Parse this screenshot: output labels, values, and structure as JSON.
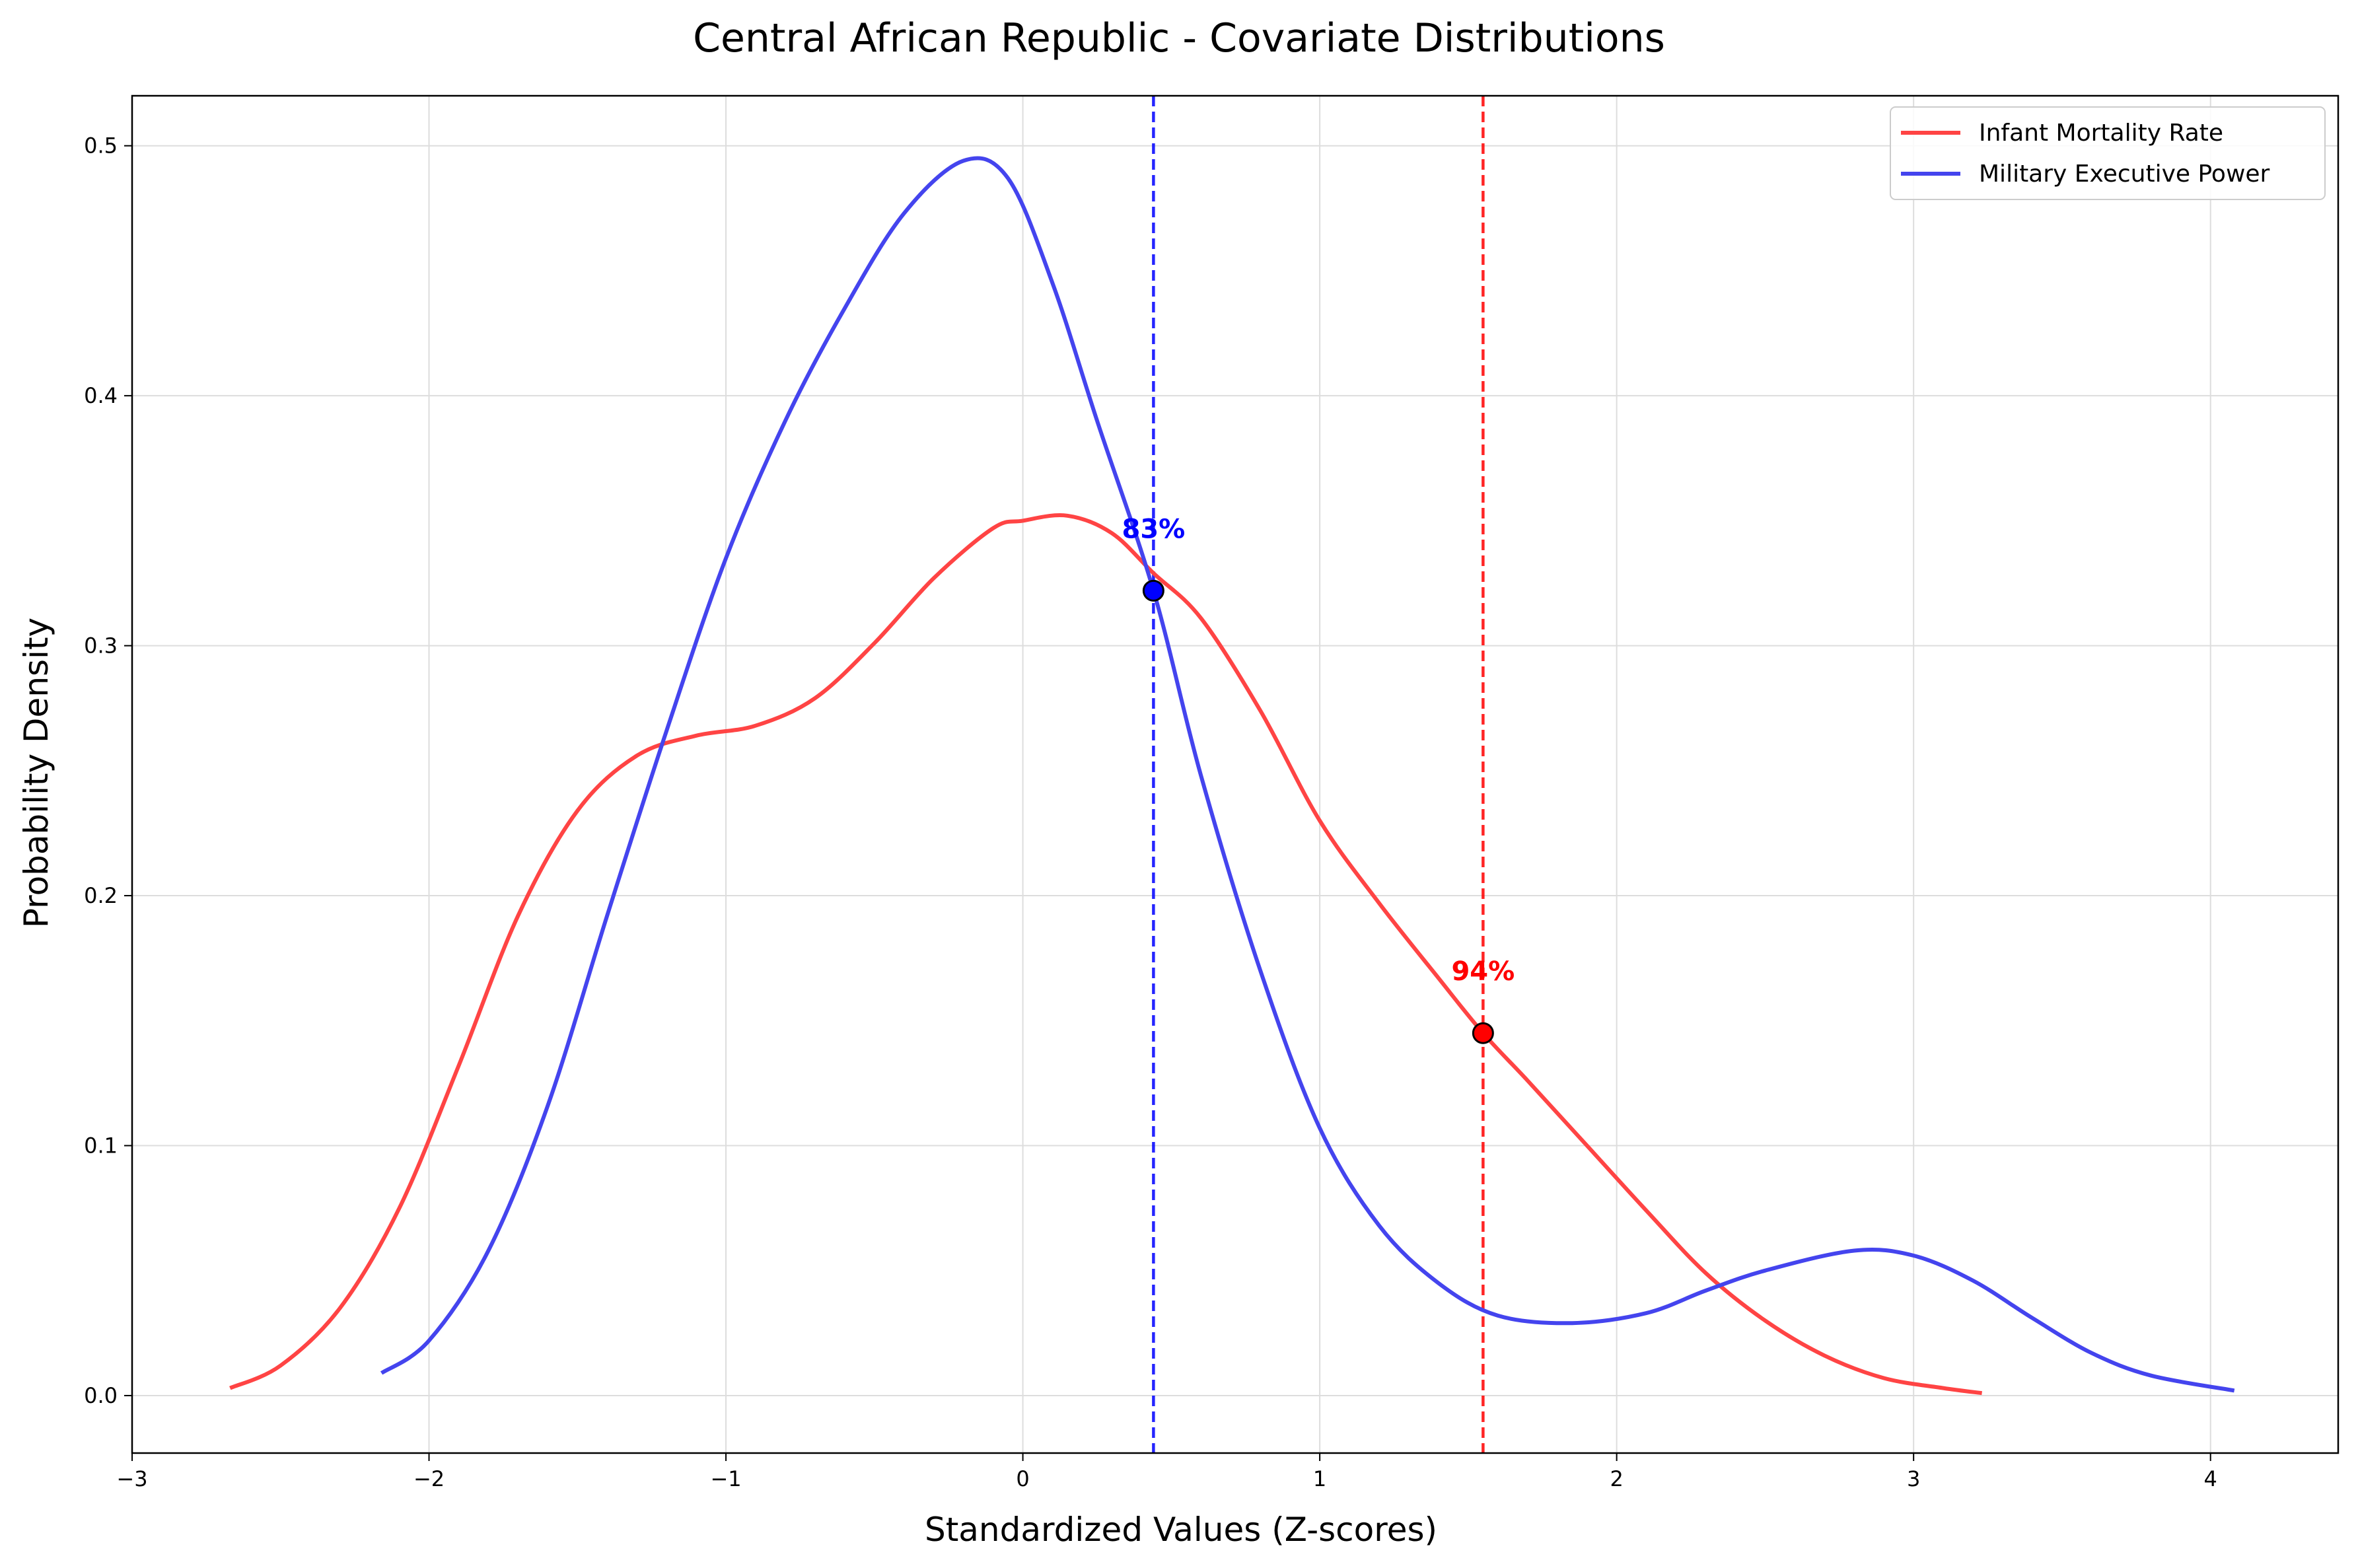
{
  "chart_data": {
    "type": "line",
    "title": "Central African Republic - Covariate Distributions",
    "xlabel": "Standardized Values (Z-scores)",
    "ylabel": "Probability Density",
    "xlim": [
      -3,
      4.43
    ],
    "ylim": [
      -0.023,
      0.52
    ],
    "xticks": [
      -3,
      -2,
      -1,
      0,
      1,
      2,
      3,
      4
    ],
    "xtick_labels": [
      "−3",
      "−2",
      "−1",
      "0",
      "1",
      "2",
      "3",
      "4"
    ],
    "yticks": [
      0.0,
      0.1,
      0.2,
      0.3,
      0.4,
      0.5
    ],
    "ytick_labels": [
      "0.0",
      "0.1",
      "0.2",
      "0.3",
      "0.4",
      "0.5"
    ],
    "grid": true,
    "legend_position": "top-right",
    "series": [
      {
        "name": "Infant Mortality Rate",
        "color": "#ff4444",
        "x": [
          -2.67,
          -2.5,
          -2.3,
          -2.1,
          -1.9,
          -1.7,
          -1.5,
          -1.3,
          -1.1,
          -0.9,
          -0.7,
          -0.5,
          -0.3,
          -0.1,
          0.0,
          0.15,
          0.3,
          0.44,
          0.6,
          0.8,
          1.0,
          1.2,
          1.4,
          1.55,
          1.7,
          1.9,
          2.1,
          2.3,
          2.5,
          2.7,
          2.9,
          3.1,
          3.23
        ],
        "values": [
          0.003,
          0.012,
          0.035,
          0.075,
          0.132,
          0.192,
          0.234,
          0.256,
          0.264,
          0.268,
          0.279,
          0.301,
          0.327,
          0.347,
          0.35,
          0.352,
          0.345,
          0.329,
          0.311,
          0.274,
          0.23,
          0.197,
          0.167,
          0.145,
          0.126,
          0.1,
          0.074,
          0.049,
          0.03,
          0.016,
          0.007,
          0.003,
          0.001
        ]
      },
      {
        "name": "Military Executive Power",
        "color": "#4444ee",
        "x": [
          -2.16,
          -2.0,
          -1.8,
          -1.6,
          -1.4,
          -1.2,
          -1.0,
          -0.8,
          -0.6,
          -0.4,
          -0.2,
          -0.05,
          0.1,
          0.25,
          0.44,
          0.6,
          0.8,
          1.0,
          1.2,
          1.4,
          1.6,
          1.85,
          2.1,
          2.3,
          2.5,
          2.8,
          3.0,
          3.2,
          3.4,
          3.6,
          3.8,
          4.08
        ],
        "values": [
          0.009,
          0.022,
          0.058,
          0.116,
          0.192,
          0.266,
          0.335,
          0.39,
          0.435,
          0.473,
          0.494,
          0.487,
          0.445,
          0.39,
          0.322,
          0.248,
          0.17,
          0.107,
          0.068,
          0.045,
          0.032,
          0.029,
          0.033,
          0.042,
          0.05,
          0.058,
          0.056,
          0.046,
          0.031,
          0.017,
          0.008,
          0.002
        ]
      }
    ],
    "markers": [
      {
        "series": "Military Executive Power",
        "x": 0.44,
        "y": 0.322,
        "label": "83%",
        "color": "#0000ff"
      },
      {
        "series": "Infant Mortality Rate",
        "x": 1.55,
        "y": 0.145,
        "label": "94%",
        "color": "#ff0000"
      }
    ]
  }
}
